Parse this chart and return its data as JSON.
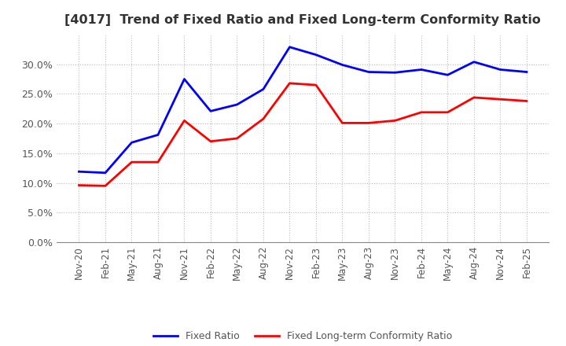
{
  "title": "[4017]  Trend of Fixed Ratio and Fixed Long-term Conformity Ratio",
  "x_labels": [
    "Nov-20",
    "Feb-21",
    "May-21",
    "Aug-21",
    "Nov-21",
    "Feb-22",
    "May-22",
    "Aug-22",
    "Nov-22",
    "Feb-23",
    "May-23",
    "Aug-23",
    "Nov-23",
    "Feb-24",
    "May-24",
    "Aug-24",
    "Nov-24",
    "Feb-25"
  ],
  "fixed_ratio": [
    0.119,
    0.117,
    0.168,
    0.181,
    0.275,
    0.221,
    0.232,
    0.258,
    0.329,
    0.316,
    0.299,
    0.287,
    0.286,
    0.291,
    0.282,
    0.304,
    0.291,
    0.287
  ],
  "fixed_lt_ratio": [
    0.096,
    0.095,
    0.135,
    0.135,
    0.205,
    0.17,
    0.175,
    0.208,
    0.268,
    0.265,
    0.201,
    0.201,
    0.205,
    0.219,
    0.219,
    0.244,
    0.241,
    0.238
  ],
  "fixed_ratio_color": "#0000FF",
  "fixed_lt_ratio_color": "#FF0000",
  "ylim": [
    0.0,
    0.35
  ],
  "yticks": [
    0.0,
    0.05,
    0.1,
    0.15,
    0.2,
    0.25,
    0.3
  ],
  "bg_color": "#FFFFFF",
  "grid_color": "#BBBBBB",
  "legend_fixed": "Fixed Ratio",
  "legend_fixed_lt": "Fixed Long-term Conformity Ratio",
  "title_color": "#333333",
  "tick_color": "#555555"
}
